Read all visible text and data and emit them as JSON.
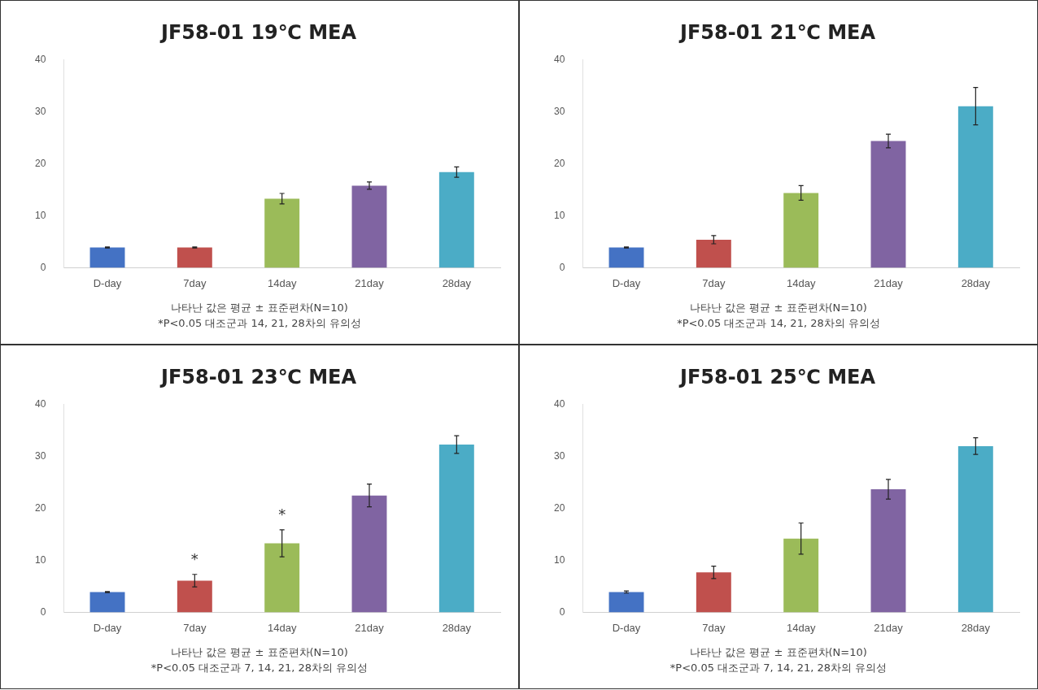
{
  "chart_data": [
    {
      "type": "bar",
      "title": "JF58-01 19℃ MEA",
      "categories": [
        "D-day",
        "7day",
        "14day",
        "21day",
        "28day"
      ],
      "values": [
        3.9,
        3.9,
        13.3,
        15.8,
        18.4
      ],
      "errors": [
        0.1,
        0.1,
        1,
        0.7,
        1
      ],
      "colors": [
        "#4472c4",
        "#c0504d",
        "#9bbb59",
        "#8064a2",
        "#4bacc6"
      ],
      "ylim": [
        0,
        40
      ],
      "yticks": [
        0,
        10,
        20,
        30,
        40
      ],
      "annotations": [
        "나타난 값은 평균 ± 표준편차(N=10)",
        "*P<0.05 대조군과 14, 21, 28차의 유의성"
      ]
    },
    {
      "type": "bar",
      "title": "JF58-01 21℃ MEA",
      "categories": [
        "D-day",
        "7day",
        "14day",
        "21day",
        "28day"
      ],
      "values": [
        3.9,
        5.4,
        14.4,
        24.4,
        31.1
      ],
      "errors": [
        0.1,
        0.8,
        1.4,
        1.3,
        3.6
      ],
      "colors": [
        "#4472c4",
        "#c0504d",
        "#9bbb59",
        "#8064a2",
        "#4bacc6"
      ],
      "ylim": [
        0,
        40
      ],
      "yticks": [
        0,
        10,
        20,
        30,
        40
      ],
      "annotations": [
        "나타난 값은 평균 ± 표준편차(N=10)",
        "*P<0.05 대조군과 14, 21, 28차의 유의성"
      ]
    },
    {
      "type": "bar",
      "title": "JF58-01 23℃ MEA",
      "categories": [
        "D-day",
        "7day",
        "14day",
        "21day",
        "28day"
      ],
      "values": [
        3.9,
        6.1,
        13.3,
        22.5,
        32.3
      ],
      "errors": [
        0.1,
        1.2,
        2.6,
        2.2,
        1.7
      ],
      "colors": [
        "#4472c4",
        "#c0504d",
        "#9bbb59",
        "#8064a2",
        "#4bacc6"
      ],
      "ylim": [
        0,
        40
      ],
      "yticks": [
        0,
        10,
        20,
        30,
        40
      ],
      "annotations": [
        {
          "text": "*",
          "x": "7day",
          "y": 7.3
        },
        {
          "text": "*",
          "x": "14day",
          "y": 15.9
        },
        "나타난 값은 평균 ± 표준편차(N=10)",
        "*P<0.05 대조군과 7, 14, 21, 28차의 유의성"
      ]
    },
    {
      "type": "bar",
      "title": "JF58-01 25℃ MEA",
      "categories": [
        "D-day",
        "7day",
        "14day",
        "21day",
        "28day"
      ],
      "values": [
        3.9,
        7.7,
        14.2,
        23.7,
        32.0
      ],
      "errors": [
        0.2,
        1.2,
        3,
        1.9,
        1.6
      ],
      "colors": [
        "#4472c4",
        "#c0504d",
        "#9bbb59",
        "#8064a2",
        "#4bacc6"
      ],
      "ylim": [
        0,
        40
      ],
      "yticks": [
        0,
        10,
        20,
        30,
        40
      ],
      "annotations": [
        "나타난 값은 평균 ± 표준편차(N=10)",
        "*P<0.05 대조군과 7, 14, 21, 28차의 유의성"
      ]
    }
  ]
}
